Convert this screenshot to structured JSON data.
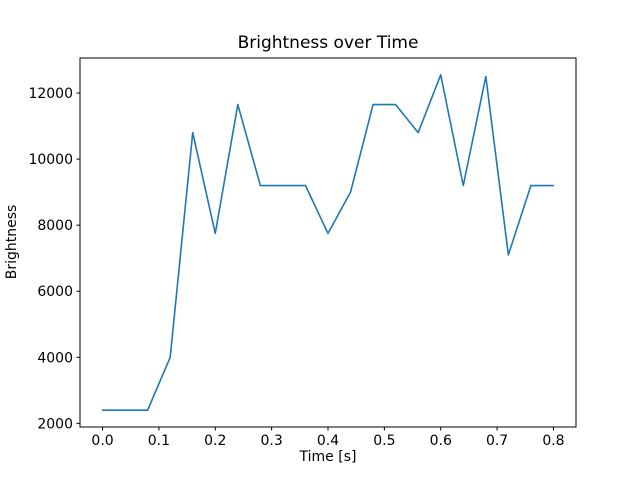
{
  "figure": {
    "background": "#ffffff"
  },
  "chart_data": {
    "type": "line",
    "title": "Brightness over Time",
    "xlabel": "Time [s]",
    "ylabel": "Brightness",
    "x": [
      0.0,
      0.04,
      0.08,
      0.12,
      0.16,
      0.2,
      0.24,
      0.28,
      0.32,
      0.36,
      0.4,
      0.44,
      0.48,
      0.52,
      0.56,
      0.6,
      0.64,
      0.68,
      0.72,
      0.76,
      0.8
    ],
    "y": [
      2400,
      2400,
      2400,
      4000,
      10800,
      7750,
      11650,
      9200,
      9200,
      9200,
      7750,
      9000,
      11650,
      11650,
      10800,
      12550,
      9200,
      12500,
      7100,
      9200,
      9200
    ],
    "xlim": [
      -0.04,
      0.84
    ],
    "ylim": [
      1890,
      13060
    ],
    "xticks": [
      0.0,
      0.1,
      0.2,
      0.3,
      0.4,
      0.5,
      0.6,
      0.7,
      0.8
    ],
    "yticks": [
      2000,
      4000,
      6000,
      8000,
      10000,
      12000
    ],
    "line_color": "#1f77b4",
    "axis_color": "#000000",
    "grid": false,
    "legend": null
  }
}
